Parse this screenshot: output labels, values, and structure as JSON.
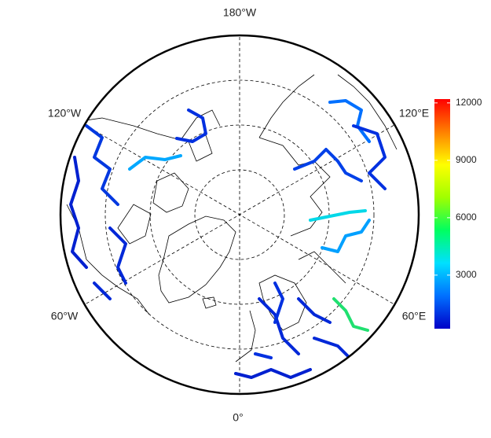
{
  "map": {
    "graticule_labels": [
      "180°W",
      "120°E",
      "60°E",
      "0°",
      "60°W",
      "120°W"
    ],
    "colorbar": {
      "lim": [
        200,
        12200
      ],
      "ticks": [
        3000,
        6000,
        9000,
        12000
      ],
      "colors": [
        "#0000c8",
        "#0070ff",
        "#00e0ff",
        "#00ff60",
        "#a0ff00",
        "#ffff00",
        "#ff8000",
        "#ff0000"
      ]
    }
  }
}
